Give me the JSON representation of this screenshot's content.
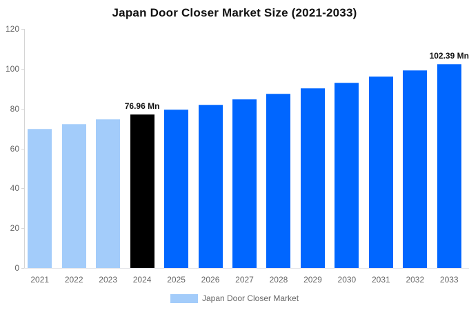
{
  "chart_data": {
    "type": "bar",
    "title": "Japan Door Closer Market Size (2021-2033)",
    "unit": "Mn",
    "categories": [
      "2021",
      "2022",
      "2023",
      "2024",
      "2025",
      "2026",
      "2027",
      "2028",
      "2029",
      "2030",
      "2031",
      "2032",
      "2033"
    ],
    "values": [
      69.98,
      72.24,
      74.56,
      76.96,
      79.44,
      82.0,
      84.64,
      87.37,
      90.18,
      93.08,
      96.08,
      99.17,
      102.39
    ],
    "bar_colors": [
      "#A3CCFA",
      "#A3CCFA",
      "#A3CCFA",
      "#000000",
      "#0066FF",
      "#0066FF",
      "#0066FF",
      "#0066FF",
      "#0066FF",
      "#0066FF",
      "#0066FF",
      "#0066FF",
      "#0066FF"
    ],
    "data_labels": {
      "2024": "76.96 Mn",
      "2033": "102.39 Mn"
    },
    "xlabel": "",
    "ylabel": "",
    "ylim": [
      0,
      120
    ],
    "yticks": [
      0,
      20,
      40,
      60,
      80,
      100,
      120
    ],
    "grid": false,
    "legend": {
      "position": "bottom",
      "label": "Japan Door Closer Market",
      "swatch_color": "#A3CCFA"
    },
    "colors": {
      "axis_line": "#d4d4d4",
      "baseline": "#e2e3e8",
      "tick_label": "#666666",
      "annotation": "#111111",
      "title": "#111111"
    }
  }
}
